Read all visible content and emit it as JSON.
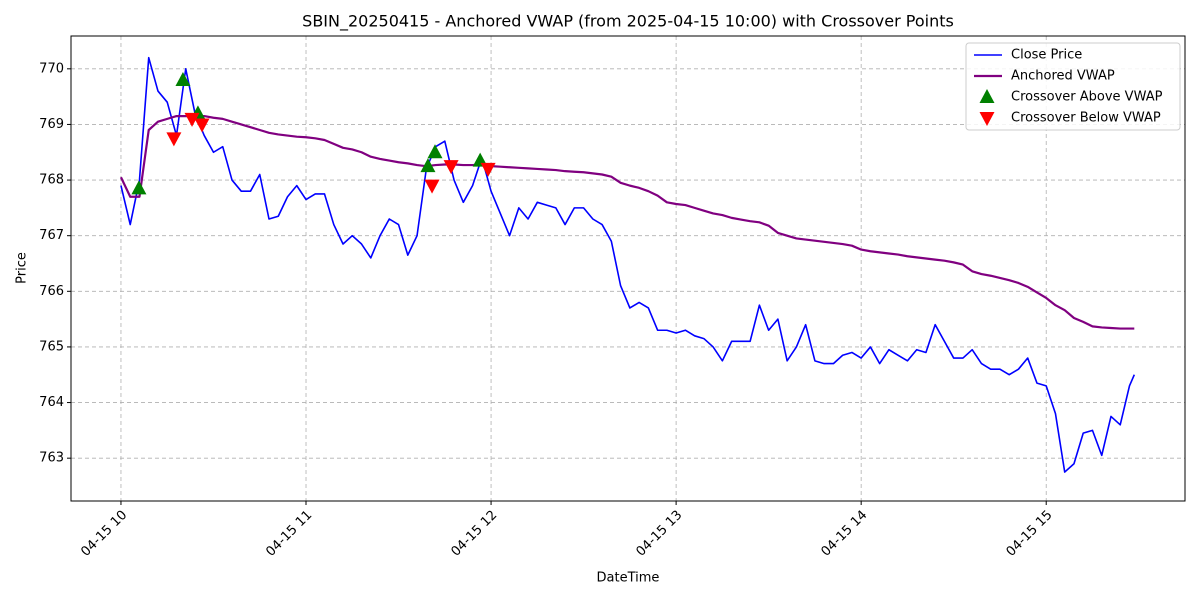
{
  "chart_data": {
    "type": "line",
    "title": "SBIN_20250415 - Anchored VWAP (from 2025-04-15 10:00) with Crossover Points",
    "x_label": "DateTime",
    "y_label": "Price",
    "xlim": [
      9.73,
      15.75
    ],
    "ylim": [
      762.23,
      770.59
    ],
    "xticks": [
      {
        "value": 10,
        "label": "04-15 10"
      },
      {
        "value": 11,
        "label": "04-15 11"
      },
      {
        "value": 12,
        "label": "04-15 12"
      },
      {
        "value": 13,
        "label": "04-15 13"
      },
      {
        "value": 14,
        "label": "04-15 14"
      },
      {
        "value": 15,
        "label": "04-15 15"
      }
    ],
    "yticks": [
      763,
      764,
      765,
      766,
      767,
      768,
      769,
      770
    ],
    "grid": true,
    "legend": "upper right",
    "x": [
      10.0,
      10.05,
      10.1,
      10.15,
      10.2,
      10.25,
      10.3,
      10.35,
      10.4,
      10.45,
      10.5,
      10.55,
      10.6,
      10.65,
      10.7,
      10.75,
      10.8,
      10.85,
      10.9,
      10.95,
      11.0,
      11.05,
      11.1,
      11.15,
      11.2,
      11.25,
      11.3,
      11.35,
      11.4,
      11.45,
      11.5,
      11.55,
      11.6,
      11.65,
      11.7,
      11.75,
      11.8,
      11.85,
      11.9,
      11.95,
      12.0,
      12.05,
      12.1,
      12.15,
      12.2,
      12.25,
      12.3,
      12.35,
      12.4,
      12.45,
      12.5,
      12.55,
      12.6,
      12.65,
      12.7,
      12.75,
      12.8,
      12.85,
      12.9,
      12.95,
      13.0,
      13.05,
      13.1,
      13.15,
      13.2,
      13.25,
      13.3,
      13.35,
      13.4,
      13.45,
      13.5,
      13.55,
      13.6,
      13.65,
      13.7,
      13.75,
      13.8,
      13.85,
      13.9,
      13.95,
      14.0,
      14.05,
      14.1,
      14.15,
      14.2,
      14.25,
      14.3,
      14.35,
      14.4,
      14.45,
      14.5,
      14.55,
      14.6,
      14.65,
      14.7,
      14.75,
      14.8,
      14.85,
      14.9,
      14.95,
      15.0,
      15.05,
      15.1,
      15.15,
      15.2,
      15.25,
      15.3,
      15.35,
      15.4,
      15.45,
      15.476
    ],
    "series": [
      {
        "name": "Close Price",
        "style": "line",
        "color": "#0000ff",
        "values": [
          767.9,
          767.2,
          768.0,
          770.2,
          769.6,
          769.4,
          768.8,
          770.0,
          769.2,
          768.8,
          768.5,
          768.6,
          768.0,
          767.8,
          767.8,
          768.1,
          767.3,
          767.35,
          767.7,
          767.9,
          767.65,
          767.75,
          767.75,
          767.2,
          766.85,
          767.0,
          766.85,
          766.6,
          767.0,
          767.3,
          767.2,
          766.65,
          767.0,
          768.2,
          768.6,
          768.7,
          768.0,
          767.6,
          767.9,
          768.4,
          767.8,
          767.4,
          767.0,
          767.5,
          767.3,
          767.6,
          767.55,
          767.5,
          767.2,
          767.5,
          767.5,
          767.3,
          767.2,
          766.9,
          766.1,
          765.7,
          765.8,
          765.7,
          765.3,
          765.3,
          765.25,
          765.3,
          765.2,
          765.15,
          765.0,
          764.75,
          765.1,
          765.1,
          765.1,
          765.75,
          765.3,
          765.5,
          764.75,
          765.0,
          765.4,
          764.75,
          764.7,
          764.7,
          764.85,
          764.9,
          764.8,
          765.0,
          764.7,
          764.95,
          764.85,
          764.75,
          764.95,
          764.9,
          765.4,
          765.1,
          764.8,
          764.8,
          764.95,
          764.7,
          764.6,
          764.6,
          764.5,
          764.6,
          764.8,
          764.35,
          764.3,
          763.8,
          762.75,
          762.9,
          763.45,
          763.5,
          763.05,
          763.75,
          763.6,
          764.3,
          764.5
        ]
      },
      {
        "name": "Anchored VWAP",
        "style": "line",
        "color": "#800080",
        "values": [
          768.05,
          767.7,
          767.7,
          768.9,
          769.05,
          769.1,
          769.15,
          769.15,
          769.15,
          769.15,
          769.12,
          769.1,
          769.05,
          769.0,
          768.95,
          768.9,
          768.85,
          768.82,
          768.8,
          768.78,
          768.77,
          768.75,
          768.72,
          768.65,
          768.58,
          768.55,
          768.5,
          768.42,
          768.38,
          768.35,
          768.32,
          768.3,
          768.27,
          768.25,
          768.27,
          768.28,
          768.28,
          768.27,
          768.27,
          768.28,
          768.25,
          768.24,
          768.23,
          768.22,
          768.21,
          768.2,
          768.19,
          768.18,
          768.16,
          768.15,
          768.14,
          768.12,
          768.1,
          768.06,
          767.95,
          767.9,
          767.86,
          767.8,
          767.72,
          767.6,
          767.57,
          767.55,
          767.5,
          767.45,
          767.4,
          767.37,
          767.32,
          767.29,
          767.26,
          767.24,
          767.18,
          767.05,
          767.0,
          766.95,
          766.93,
          766.91,
          766.89,
          766.87,
          766.85,
          766.82,
          766.75,
          766.72,
          766.7,
          766.68,
          766.66,
          766.63,
          766.61,
          766.59,
          766.57,
          766.55,
          766.52,
          766.48,
          766.36,
          766.31,
          766.28,
          766.24,
          766.2,
          766.15,
          766.08,
          765.98,
          765.88,
          765.75,
          765.66,
          765.52,
          765.45,
          765.37,
          765.35,
          765.34,
          765.33,
          765.33,
          765.33
        ]
      },
      {
        "name": "Crossover Above VWAP",
        "style": "scatter",
        "marker": "triangle-up",
        "color": "#008000",
        "x": [
          10.097,
          10.335,
          10.416,
          11.659,
          11.697,
          11.941
        ],
        "values": [
          767.85,
          769.8,
          769.2,
          768.25,
          768.5,
          768.35
        ]
      },
      {
        "name": "Crossover Below VWAP",
        "style": "scatter",
        "marker": "triangle-down",
        "color": "#ff0000",
        "x": [
          10.286,
          10.384,
          10.438,
          11.681,
          11.784,
          11.984
        ],
        "values": [
          768.75,
          769.1,
          769.0,
          767.9,
          768.25,
          768.2
        ]
      }
    ]
  }
}
